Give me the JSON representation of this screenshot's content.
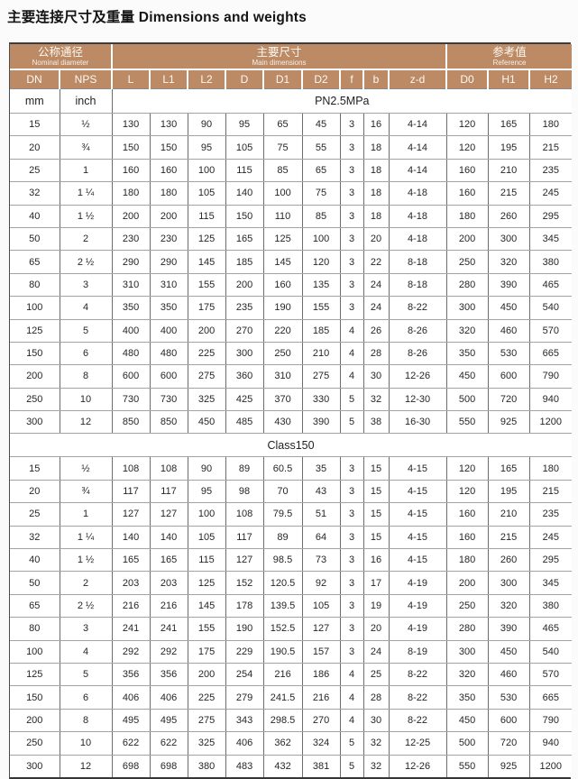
{
  "title": "主要连接尺寸及重量 Dimensions and weights",
  "colors": {
    "header_bg": "#bc8a64",
    "header_text": "#ffffff",
    "grid_line": "#8a8a8a",
    "frame": "#3d3d3d"
  },
  "table": {
    "groups": [
      {
        "zh": "公称通径",
        "en": "Nominal diameter"
      },
      {
        "zh": "主要尺寸",
        "en": "Main dimensions"
      },
      {
        "zh": "参考值",
        "en": "Reference"
      }
    ],
    "columns": [
      "DN",
      "NPS",
      "L",
      "L1",
      "L2",
      "D",
      "D1",
      "D2",
      "f",
      "b",
      "z-d",
      "D0",
      "H1",
      "H2"
    ],
    "units": [
      "mm",
      "inch"
    ],
    "sections": [
      {
        "label": "PN2.5MPa",
        "rows": [
          [
            "15",
            "½",
            "130",
            "130",
            "90",
            "95",
            "65",
            "45",
            "3",
            "16",
            "4-14",
            "120",
            "165",
            "180"
          ],
          [
            "20",
            "¾",
            "150",
            "150",
            "95",
            "105",
            "75",
            "55",
            "3",
            "18",
            "4-14",
            "120",
            "195",
            "215"
          ],
          [
            "25",
            "1",
            "160",
            "160",
            "100",
            "115",
            "85",
            "65",
            "3",
            "18",
            "4-14",
            "160",
            "210",
            "235"
          ],
          [
            "32",
            "1 ¼",
            "180",
            "180",
            "105",
            "140",
            "100",
            "75",
            "3",
            "18",
            "4-18",
            "160",
            "215",
            "245"
          ],
          [
            "40",
            "1 ½",
            "200",
            "200",
            "115",
            "150",
            "110",
            "85",
            "3",
            "18",
            "4-18",
            "180",
            "260",
            "295"
          ],
          [
            "50",
            "2",
            "230",
            "230",
            "125",
            "165",
            "125",
            "100",
            "3",
            "20",
            "4-18",
            "200",
            "300",
            "345"
          ],
          [
            "65",
            "2 ½",
            "290",
            "290",
            "145",
            "185",
            "145",
            "120",
            "3",
            "22",
            "8-18",
            "250",
            "320",
            "380"
          ],
          [
            "80",
            "3",
            "310",
            "310",
            "155",
            "200",
            "160",
            "135",
            "3",
            "24",
            "8-18",
            "280",
            "390",
            "465"
          ],
          [
            "100",
            "4",
            "350",
            "350",
            "175",
            "235",
            "190",
            "155",
            "3",
            "24",
            "8-22",
            "300",
            "450",
            "540"
          ],
          [
            "125",
            "5",
            "400",
            "400",
            "200",
            "270",
            "220",
            "185",
            "4",
            "26",
            "8-26",
            "320",
            "460",
            "570"
          ],
          [
            "150",
            "6",
            "480",
            "480",
            "225",
            "300",
            "250",
            "210",
            "4",
            "28",
            "8-26",
            "350",
            "530",
            "665"
          ],
          [
            "200",
            "8",
            "600",
            "600",
            "275",
            "360",
            "310",
            "275",
            "4",
            "30",
            "12-26",
            "450",
            "600",
            "790"
          ],
          [
            "250",
            "10",
            "730",
            "730",
            "325",
            "425",
            "370",
            "330",
            "5",
            "32",
            "12-30",
            "500",
            "720",
            "940"
          ],
          [
            "300",
            "12",
            "850",
            "850",
            "450",
            "485",
            "430",
            "390",
            "5",
            "38",
            "16-30",
            "550",
            "925",
            "1200"
          ]
        ]
      },
      {
        "label": "Class150",
        "rows": [
          [
            "15",
            "½",
            "108",
            "108",
            "90",
            "89",
            "60.5",
            "35",
            "3",
            "15",
            "4-15",
            "120",
            "165",
            "180"
          ],
          [
            "20",
            "¾",
            "117",
            "117",
            "95",
            "98",
            "70",
            "43",
            "3",
            "15",
            "4-15",
            "120",
            "195",
            "215"
          ],
          [
            "25",
            "1",
            "127",
            "127",
            "100",
            "108",
            "79.5",
            "51",
            "3",
            "15",
            "4-15",
            "160",
            "210",
            "235"
          ],
          [
            "32",
            "1 ¼",
            "140",
            "140",
            "105",
            "117",
            "89",
            "64",
            "3",
            "15",
            "4-15",
            "160",
            "215",
            "245"
          ],
          [
            "40",
            "1 ½",
            "165",
            "165",
            "115",
            "127",
            "98.5",
            "73",
            "3",
            "16",
            "4-15",
            "180",
            "260",
            "295"
          ],
          [
            "50",
            "2",
            "203",
            "203",
            "125",
            "152",
            "120.5",
            "92",
            "3",
            "17",
            "4-19",
            "200",
            "300",
            "345"
          ],
          [
            "65",
            "2 ½",
            "216",
            "216",
            "145",
            "178",
            "139.5",
            "105",
            "3",
            "19",
            "4-19",
            "250",
            "320",
            "380"
          ],
          [
            "80",
            "3",
            "241",
            "241",
            "155",
            "190",
            "152.5",
            "127",
            "3",
            "20",
            "4-19",
            "280",
            "390",
            "465"
          ],
          [
            "100",
            "4",
            "292",
            "292",
            "175",
            "229",
            "190.5",
            "157",
            "3",
            "24",
            "8-19",
            "300",
            "450",
            "540"
          ],
          [
            "125",
            "5",
            "356",
            "356",
            "200",
            "254",
            "216",
            "186",
            "4",
            "25",
            "8-22",
            "320",
            "460",
            "570"
          ],
          [
            "150",
            "6",
            "406",
            "406",
            "225",
            "279",
            "241.5",
            "216",
            "4",
            "28",
            "8-22",
            "350",
            "530",
            "665"
          ],
          [
            "200",
            "8",
            "495",
            "495",
            "275",
            "343",
            "298.5",
            "270",
            "4",
            "30",
            "8-22",
            "450",
            "600",
            "790"
          ],
          [
            "250",
            "10",
            "622",
            "622",
            "325",
            "406",
            "362",
            "324",
            "5",
            "32",
            "12-25",
            "500",
            "720",
            "940"
          ],
          [
            "300",
            "12",
            "698",
            "698",
            "380",
            "483",
            "432",
            "381",
            "5",
            "32",
            "12-26",
            "550",
            "925",
            "1200"
          ]
        ]
      }
    ]
  }
}
